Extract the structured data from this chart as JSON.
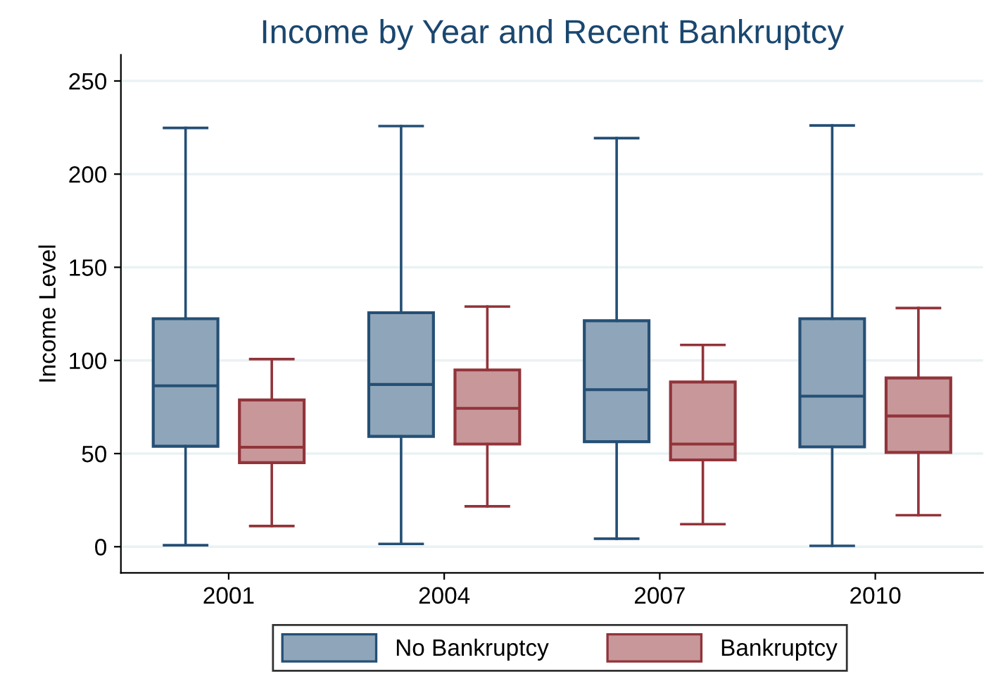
{
  "chart_data": {
    "type": "box",
    "title": "Income by Year and Recent Bankruptcy",
    "ylabel": "Income Level",
    "categories": [
      "2001",
      "2004",
      "2007",
      "2010"
    ],
    "series": [
      {
        "name": "No Bankruptcy",
        "color": "#8fa5b9",
        "boxes": [
          {
            "low": 0.8,
            "q1": 53.9,
            "median": 86.4,
            "q3": 122.4,
            "high": 224.8
          },
          {
            "low": 1.5,
            "q1": 59.2,
            "median": 87.1,
            "q3": 125.6,
            "high": 225.8
          },
          {
            "low": 4.3,
            "q1": 56.4,
            "median": 84.3,
            "q3": 121.3,
            "high": 219.3
          },
          {
            "low": 0.5,
            "q1": 53.6,
            "median": 80.8,
            "q3": 122.4,
            "high": 226.1
          }
        ]
      },
      {
        "name": "Bankruptcy",
        "color": "#c8979a",
        "boxes": [
          {
            "low": 11.1,
            "q1": 45.1,
            "median": 53.4,
            "q3": 78.8,
            "high": 100.7
          },
          {
            "low": 21.7,
            "q1": 55.1,
            "median": 74.3,
            "q3": 94.9,
            "high": 128.9
          },
          {
            "low": 12.1,
            "q1": 46.6,
            "median": 55.1,
            "q3": 88.4,
            "high": 108.3
          },
          {
            "low": 16.9,
            "q1": 50.6,
            "median": 70.2,
            "q3": 90.6,
            "high": 128.1
          }
        ]
      }
    ],
    "ylim": [
      -14,
      264
    ],
    "yticks": [
      0,
      50,
      100,
      150,
      200,
      250
    ],
    "grid": "y",
    "legend": "bottom"
  }
}
